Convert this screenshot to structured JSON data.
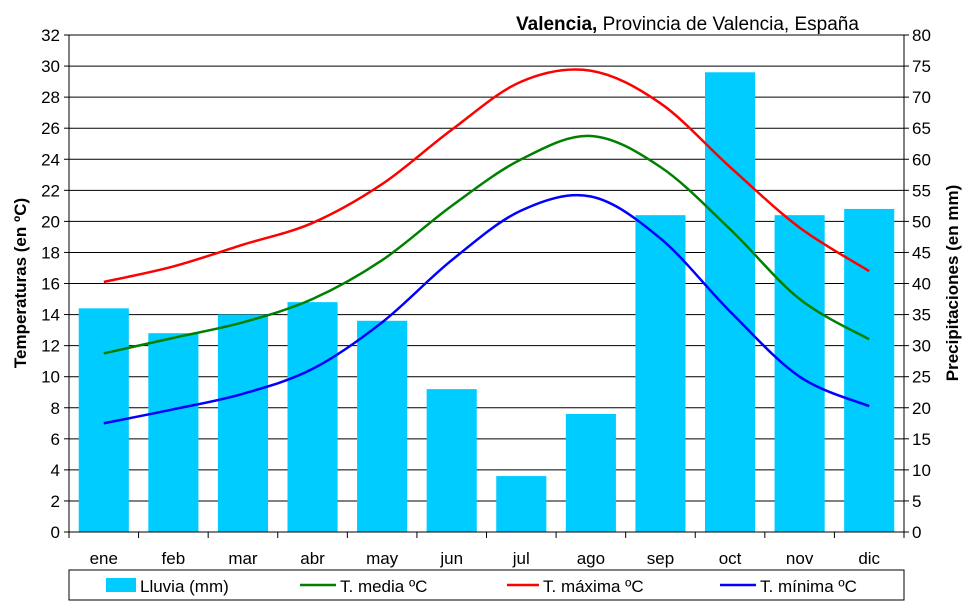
{
  "chart_data": {
    "type": "bar+line",
    "title_bold": "Valencia,",
    "title_rest": " Provincia de Valencia, España",
    "ylabel_left": "Temperaturas (en ºC)",
    "ylabel_right": "Precipitaciones (en mm)",
    "categories": [
      "ene",
      "feb",
      "mar",
      "abr",
      "may",
      "jun",
      "jul",
      "ago",
      "sep",
      "oct",
      "nov",
      "dic"
    ],
    "ylim_left": [
      0,
      32
    ],
    "ylim_right": [
      0,
      80
    ],
    "yticks_left": [
      "0",
      "2",
      "4",
      "6",
      "8",
      "10",
      "12",
      "14",
      "16",
      "18",
      "20",
      "22",
      "24",
      "26",
      "28",
      "30",
      "32"
    ],
    "yticks_right": [
      "0",
      "5",
      "10",
      "15",
      "20",
      "25",
      "30",
      "35",
      "40",
      "45",
      "50",
      "55",
      "60",
      "65",
      "70",
      "75",
      "80"
    ],
    "grid": true,
    "legend_position": "bottom",
    "series": [
      {
        "name": "Lluvia (mm)",
        "kind": "bar",
        "axis": "right",
        "color": "#00ccff",
        "values": [
          36,
          32,
          35,
          37,
          34,
          23,
          9,
          19,
          51,
          74,
          51,
          52
        ]
      },
      {
        "name": "T. media ºC",
        "kind": "line",
        "axis": "left",
        "color": "#008000",
        "values": [
          11.5,
          12.5,
          13.5,
          15.0,
          17.5,
          21.0,
          24.0,
          25.5,
          23.5,
          19.5,
          15.0,
          12.4
        ]
      },
      {
        "name": "T. máxima ºC",
        "kind": "line",
        "axis": "left",
        "color": "#ff0000",
        "values": [
          16.1,
          17.1,
          18.5,
          19.9,
          22.4,
          25.9,
          29.0,
          29.7,
          27.6,
          23.5,
          19.6,
          16.8
        ]
      },
      {
        "name": "T. mínima ºC",
        "kind": "line",
        "axis": "left",
        "color": "#0000ff",
        "values": [
          7.0,
          7.9,
          8.9,
          10.5,
          13.5,
          17.5,
          20.7,
          21.6,
          18.9,
          14.2,
          10.0,
          8.1
        ]
      }
    ]
  }
}
